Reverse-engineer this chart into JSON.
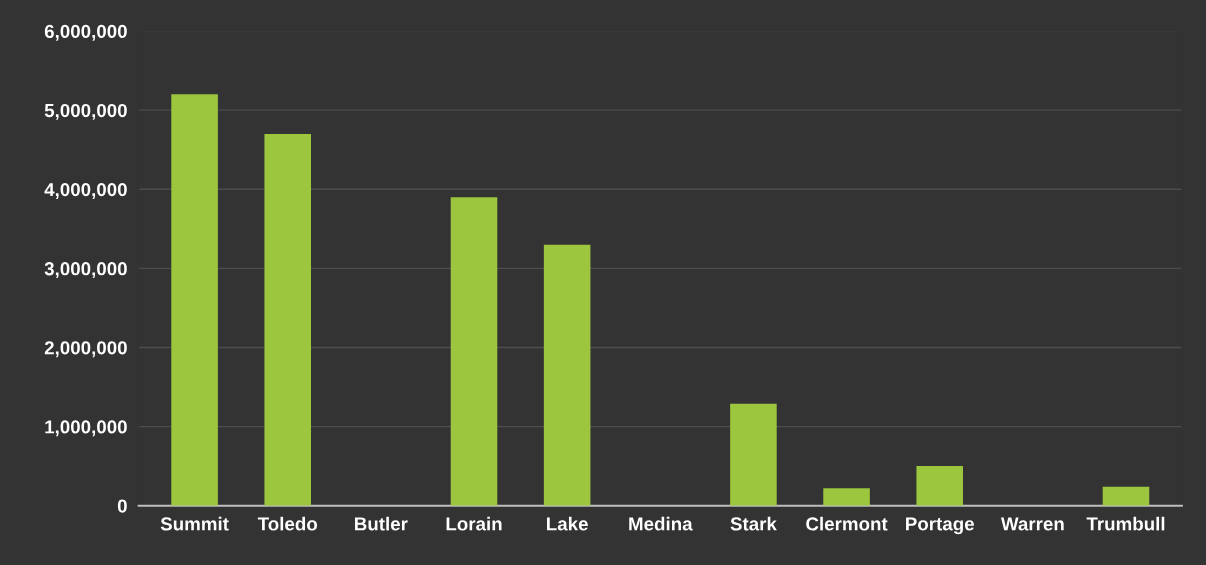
{
  "chart_data": {
    "type": "bar",
    "categories": [
      "Summit",
      "Toledo",
      "Butler",
      "Lorain",
      "Lake",
      "Medina",
      "Stark",
      "Clermont",
      "Portage",
      "Warren",
      "Trumbull"
    ],
    "values": [
      5200000,
      4700000,
      0,
      3900000,
      3300000,
      0,
      1290000,
      220000,
      500000,
      0,
      240000
    ],
    "color": "#9cc63e",
    "ylim": [
      0,
      6000000
    ],
    "yticks": [
      {
        "value": 0,
        "label": "0"
      },
      {
        "value": 1000000,
        "label": "1,000,000"
      },
      {
        "value": 2000000,
        "label": "2,000,000"
      },
      {
        "value": 3000000,
        "label": "3,000,000"
      },
      {
        "value": 4000000,
        "label": "4,000,000"
      },
      {
        "value": 5000000,
        "label": "5,000,000"
      },
      {
        "value": 6000000,
        "label": "6,000,000"
      }
    ],
    "grid": "y",
    "legend": false
  }
}
